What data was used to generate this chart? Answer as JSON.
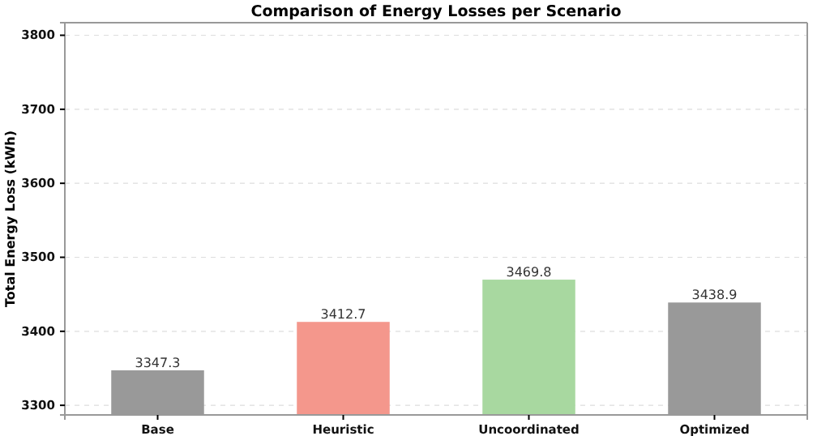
{
  "chart_data": {
    "type": "bar",
    "title": "Comparison of Energy Losses per Scenario",
    "ylabel": "Total Energy Loss (kWh)",
    "categories": [
      "Base",
      "Heuristic",
      "Uncoordinated",
      "Optimized"
    ],
    "values": [
      3347.3,
      3412.7,
      3469.8,
      3438.9
    ],
    "colors": [
      "#999999",
      "#f4978c",
      "#a8d8a0",
      "#999999"
    ],
    "ylim": [
      3287,
      3817
    ],
    "yticks": [
      3300,
      3400,
      3500,
      3600,
      3700,
      3800
    ],
    "grid": "y",
    "data_labels": true
  }
}
